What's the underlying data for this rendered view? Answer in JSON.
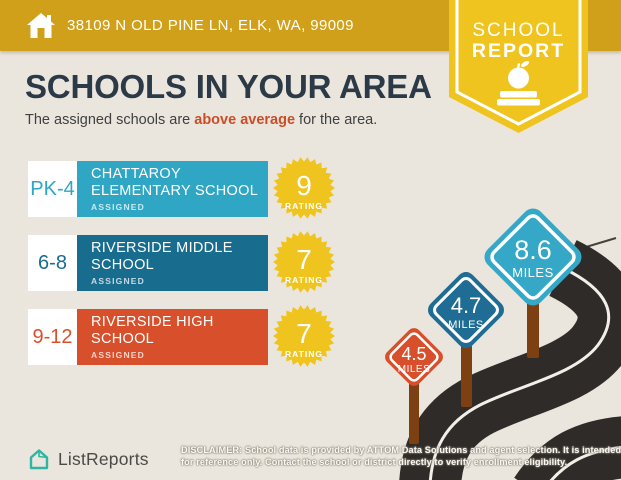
{
  "header": {
    "address": "38109 N OLD PINE LN, ELK, WA, 99009",
    "home_icon": "home-icon"
  },
  "ribbon": {
    "line1": "SCHOOL",
    "line2": "REPORT",
    "apple_icon": "apple-icon",
    "book_icon": "book-icon"
  },
  "title": "SCHOOLS IN YOUR AREA",
  "subtitle": {
    "prefix": "The assigned schools are ",
    "highlight": "above average",
    "suffix": " for the area."
  },
  "schools": [
    {
      "grade": "PK-4",
      "name_line1": "CHATTAROY",
      "name_line2": "ELEMENTARY SCHOOL",
      "tag": "ASSIGNED",
      "rating": "9",
      "rating_label": "RATING",
      "color": "#2FA6C4"
    },
    {
      "grade": "6-8",
      "name_line1": "RIVERSIDE MIDDLE",
      "name_line2": "SCHOOL",
      "tag": "ASSIGNED",
      "rating": "7",
      "rating_label": "RATING",
      "color": "#186C8E"
    },
    {
      "grade": "9-12",
      "name_line1": "RIVERSIDE HIGH",
      "name_line2": "SCHOOL",
      "tag": "ASSIGNED",
      "rating": "7",
      "rating_label": "RATING",
      "color": "#D8502B"
    }
  ],
  "signs": [
    {
      "value": "4.5",
      "unit": "MILES",
      "color": "#D8502B"
    },
    {
      "value": "4.7",
      "unit": "MILES",
      "color": "#1F6C94"
    },
    {
      "value": "8.6",
      "unit": "MILES",
      "color": "#35A8C8"
    }
  ],
  "footer": {
    "brand": "ListReports",
    "disclaimer_line1": "DISCLAIMER: School data is provided by ATTOM Data Solutions and agent selection. It is intended",
    "disclaimer_line2": "for reference only. Contact the school or district directly to verify enrollment eligibility."
  },
  "colors": {
    "background": "#EAE6DD",
    "header_bar_gold": "#D1A01A",
    "ribbon_yellow": "#F0C41E",
    "badge_yellow": "#F0C41E",
    "title_navy": "#2C3A47",
    "highlight_orange": "#C94E28",
    "elementary_teal": "#2FA6C4",
    "middle_blue": "#186C8E",
    "high_orange": "#D8502B",
    "sign_teal": "#35A8C8",
    "sign_blue": "#1F6C94",
    "sign_orange": "#D8502B",
    "road_dark": "#2E2B28",
    "post_brown": "#7C4012",
    "logo_teal": "#2FB5A4"
  }
}
